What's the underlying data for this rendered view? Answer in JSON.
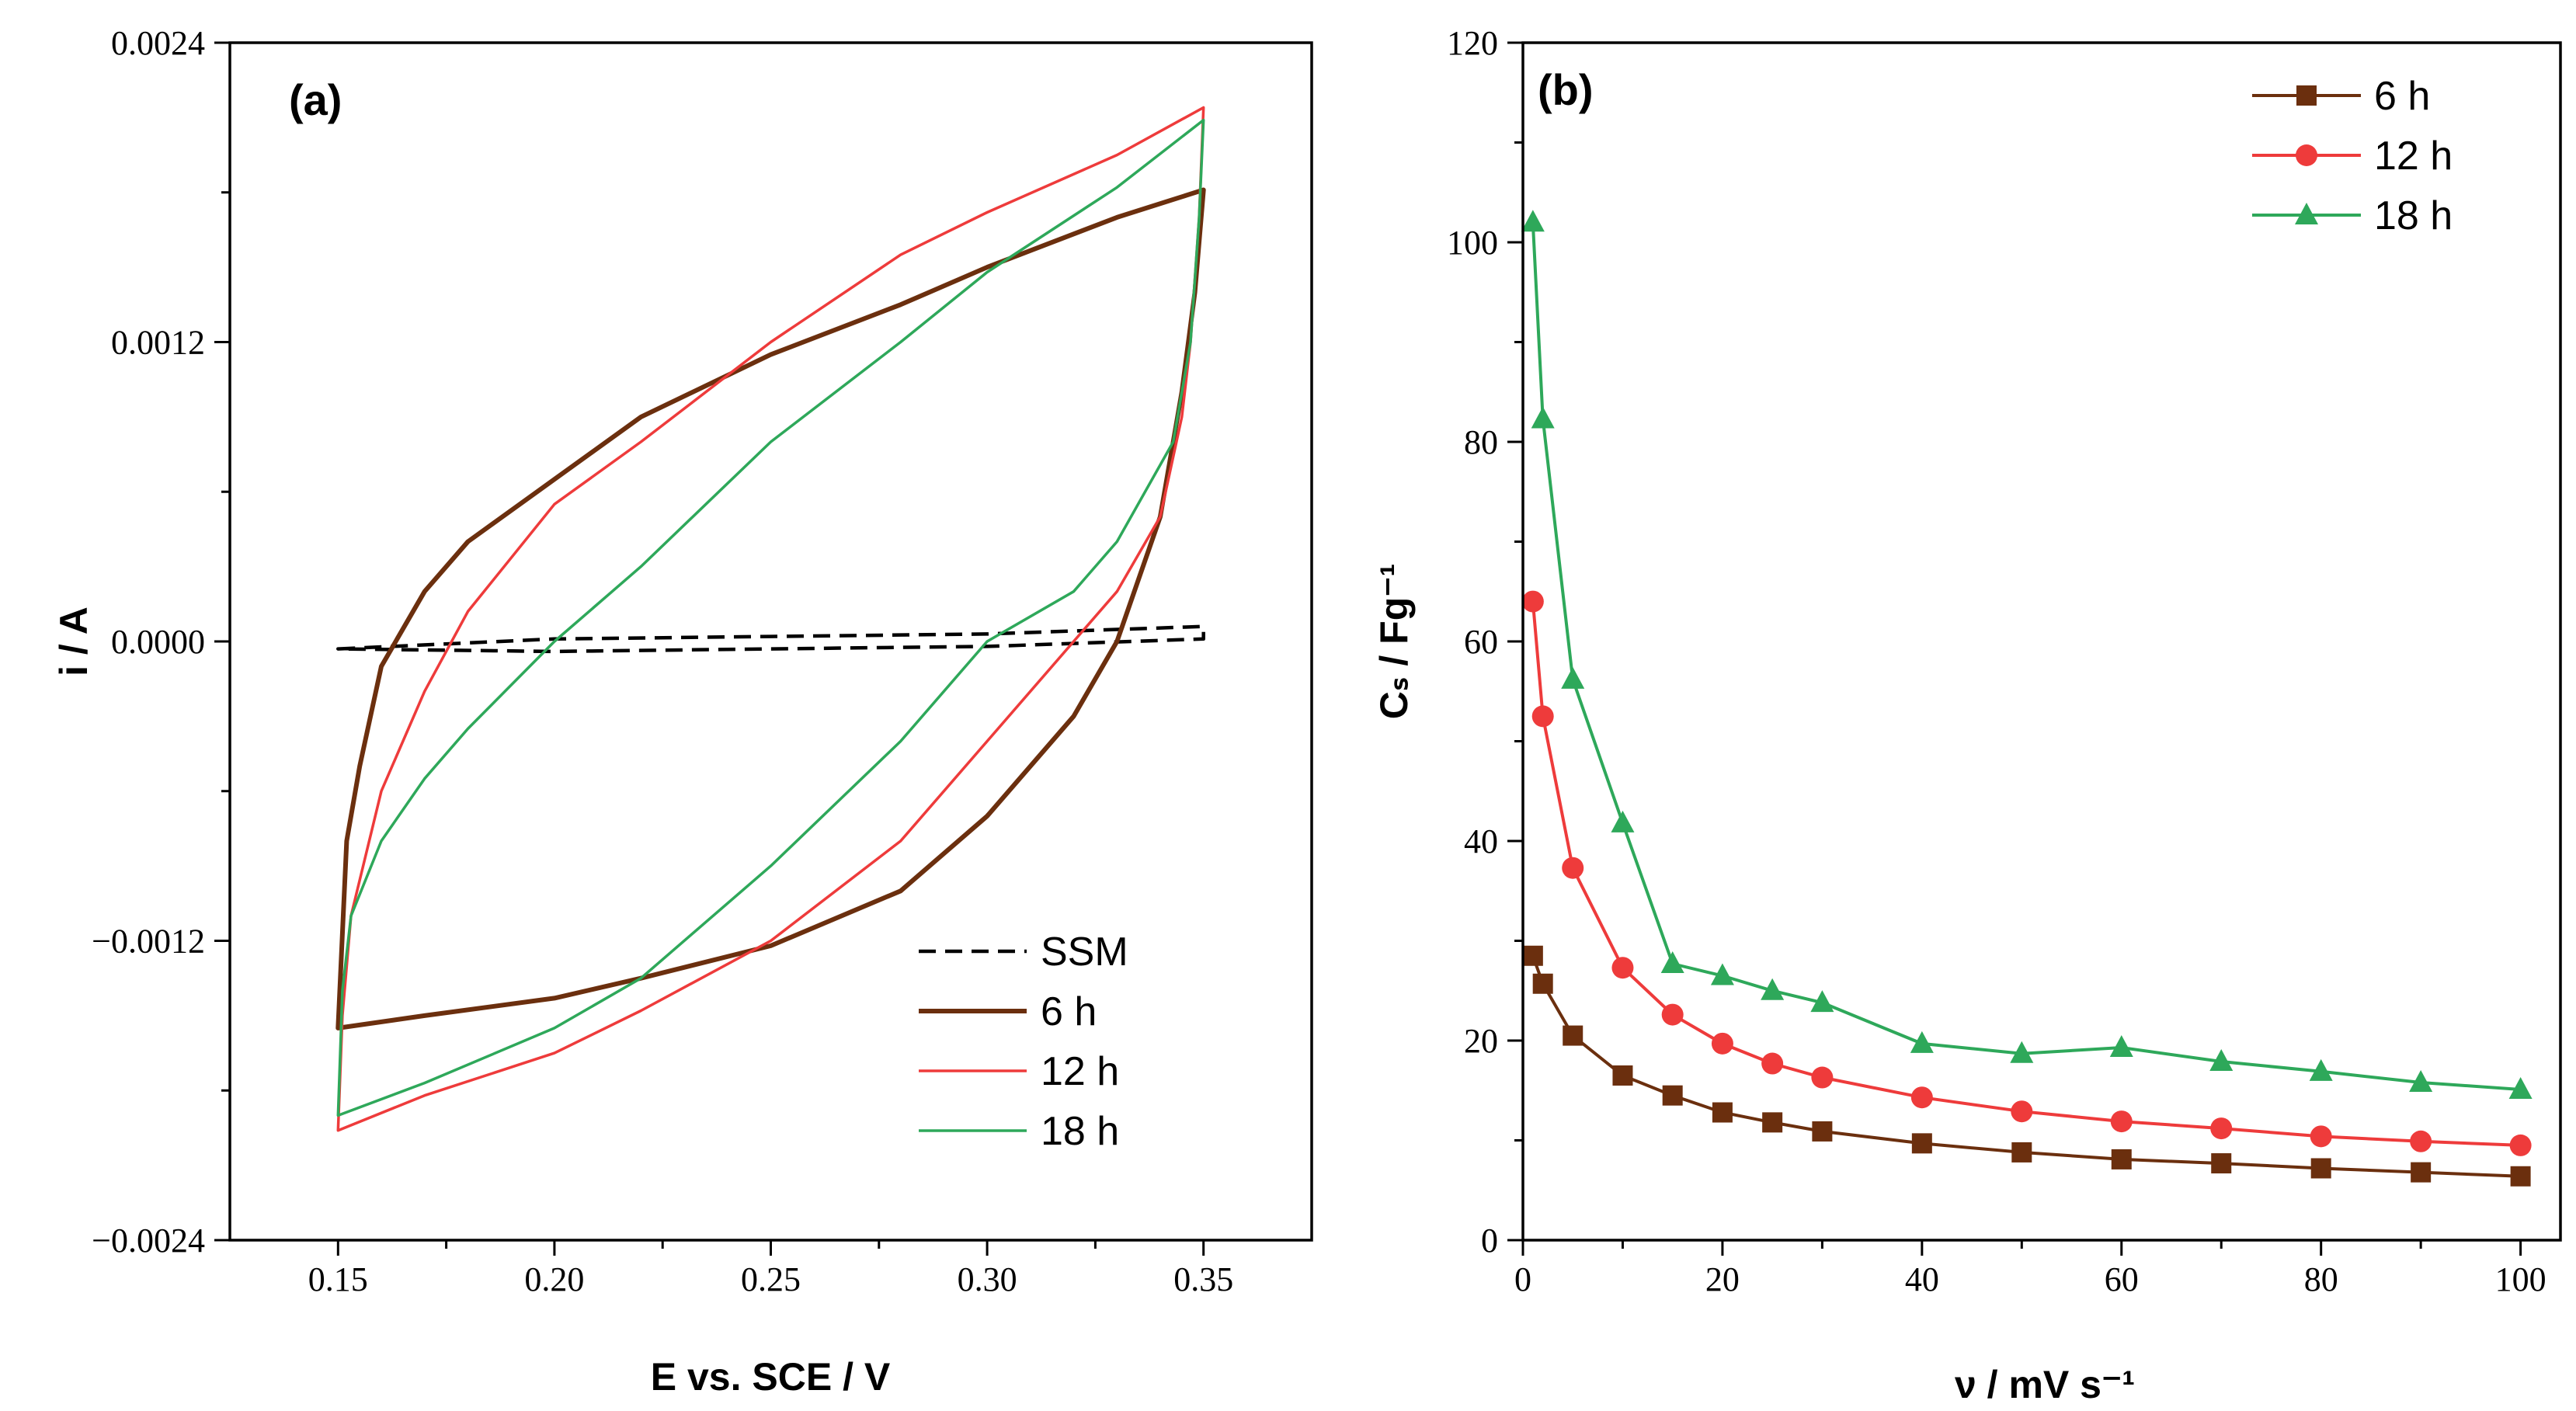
{
  "chart_data": [
    {
      "panel": "(a)",
      "type": "line",
      "xlabel": "E vs. SCE / V",
      "ylabel": "i / A",
      "xlim": [
        0.125,
        0.375
      ],
      "ylim": [
        -0.0024,
        0.0024
      ],
      "xticks": [
        0.15,
        0.2,
        0.25,
        0.3,
        0.35
      ],
      "xtick_labels": [
        "0.15",
        "0.20",
        "0.25",
        "0.30",
        "0.35"
      ],
      "yticks": [
        -0.0024,
        -0.0012,
        0.0,
        0.0012,
        0.0024
      ],
      "ytick_labels": [
        "−0.0024",
        "−0.0012",
        "0.0000",
        "0.0012",
        "0.0024"
      ],
      "legend_position": "bottom-right",
      "series": [
        {
          "name": "SSM",
          "color": "#000000",
          "dash": true,
          "anodic": {
            "x": [
              0.15,
              0.2,
              0.25,
              0.3,
              0.35
            ],
            "y": [
              -3e-05,
              1e-05,
              2e-05,
              3e-05,
              6e-05
            ]
          },
          "cathodic": {
            "x": [
              0.35,
              0.3,
              0.25,
              0.2,
              0.15
            ],
            "y": [
              1e-05,
              -2e-05,
              -3e-05,
              -4e-05,
              -3e-05
            ]
          }
        },
        {
          "name": "6 h",
          "color": "#6b2f0e",
          "dash": false,
          "anodic": {
            "x": [
              0.15,
              0.152,
              0.155,
              0.16,
              0.17,
              0.18,
              0.2,
              0.22,
              0.25,
              0.28,
              0.3,
              0.33,
              0.35
            ],
            "y": [
              -0.00155,
              -0.0008,
              -0.0005,
              -0.0001,
              0.0002,
              0.0004,
              0.00065,
              0.0009,
              0.00115,
              0.00135,
              0.0015,
              0.0017,
              0.00181
            ]
          },
          "cathodic": {
            "x": [
              0.35,
              0.348,
              0.345,
              0.34,
              0.33,
              0.32,
              0.3,
              0.28,
              0.25,
              0.22,
              0.2,
              0.17,
              0.15
            ],
            "y": [
              0.00181,
              0.0014,
              0.001,
              0.0005,
              0.0,
              -0.0003,
              -0.0007,
              -0.001,
              -0.00122,
              -0.00135,
              -0.00143,
              -0.0015,
              -0.00155
            ]
          }
        },
        {
          "name": "12 h",
          "color": "#ee3b3b",
          "dash": false,
          "anodic": {
            "x": [
              0.15,
              0.151,
              0.153,
              0.16,
              0.17,
              0.18,
              0.2,
              0.22,
              0.25,
              0.28,
              0.3,
              0.33,
              0.35
            ],
            "y": [
              -0.00196,
              -0.0015,
              -0.0011,
              -0.0006,
              -0.0002,
              0.00012,
              0.00055,
              0.0008,
              0.0012,
              0.00155,
              0.00172,
              0.00195,
              0.00214
            ]
          },
          "cathodic": {
            "x": [
              0.35,
              0.349,
              0.347,
              0.345,
              0.34,
              0.33,
              0.32,
              0.3,
              0.28,
              0.25,
              0.22,
              0.2,
              0.17,
              0.15
            ],
            "y": [
              0.00214,
              0.0017,
              0.0012,
              0.0009,
              0.0005,
              0.0002,
              0.0,
              -0.0004,
              -0.0008,
              -0.0012,
              -0.00148,
              -0.00165,
              -0.00182,
              -0.00196
            ]
          }
        },
        {
          "name": "18 h",
          "color": "#2ea85a",
          "dash": false,
          "anodic": {
            "x": [
              0.15,
              0.151,
              0.153,
              0.16,
              0.17,
              0.18,
              0.2,
              0.22,
              0.25,
              0.28,
              0.3,
              0.33,
              0.35
            ],
            "y": [
              -0.0019,
              -0.0014,
              -0.0011,
              -0.0008,
              -0.00055,
              -0.00035,
              0.0,
              0.0003,
              0.0008,
              0.0012,
              0.00148,
              0.00182,
              0.00209
            ]
          },
          "cathodic": {
            "x": [
              0.35,
              0.349,
              0.347,
              0.343,
              0.33,
              0.32,
              0.3,
              0.28,
              0.25,
              0.22,
              0.2,
              0.17,
              0.15
            ],
            "y": [
              0.00209,
              0.0017,
              0.0012,
              0.0008,
              0.0004,
              0.0002,
              0.0,
              -0.0004,
              -0.0009,
              -0.00135,
              -0.00155,
              -0.00177,
              -0.0019
            ]
          }
        }
      ]
    },
    {
      "panel": "(b)",
      "type": "line",
      "markers": true,
      "xlabel": "ν / mV s⁻¹",
      "ylabel": "Cₛ / Fg⁻¹",
      "xlim": [
        0,
        104
      ],
      "ylim": [
        0,
        120
      ],
      "xticks": [
        0,
        20,
        40,
        60,
        80,
        100
      ],
      "xtick_labels": [
        "0",
        "20",
        "40",
        "60",
        "80",
        "100"
      ],
      "yticks": [
        0,
        20,
        40,
        60,
        80,
        100,
        120
      ],
      "ytick_labels": [
        "0",
        "20",
        "40",
        "60",
        "80",
        "100",
        "120"
      ],
      "legend_position": "top-right",
      "x": [
        1,
        2,
        5,
        10,
        15,
        20,
        25,
        30,
        40,
        50,
        60,
        70,
        80,
        90,
        100
      ],
      "series": [
        {
          "name": "6 h",
          "color": "#6b2f0e",
          "marker": "square",
          "values": [
            28.5,
            25.7,
            20.5,
            16.5,
            14.5,
            12.8,
            11.8,
            10.9,
            9.7,
            8.8,
            8.1,
            7.7,
            7.2,
            6.8,
            6.4
          ]
        },
        {
          "name": "12 h",
          "color": "#ee3b3b",
          "marker": "circle",
          "values": [
            64.0,
            52.5,
            37.3,
            27.3,
            22.6,
            19.7,
            17.7,
            16.3,
            14.3,
            12.9,
            11.9,
            11.2,
            10.4,
            9.9,
            9.5
          ]
        },
        {
          "name": "18 h",
          "color": "#2ea85a",
          "marker": "triangle",
          "values": [
            102.0,
            82.3,
            56.2,
            41.8,
            27.7,
            26.5,
            25.0,
            23.8,
            19.7,
            18.7,
            19.3,
            17.9,
            16.9,
            15.8,
            15.1
          ]
        }
      ]
    }
  ]
}
